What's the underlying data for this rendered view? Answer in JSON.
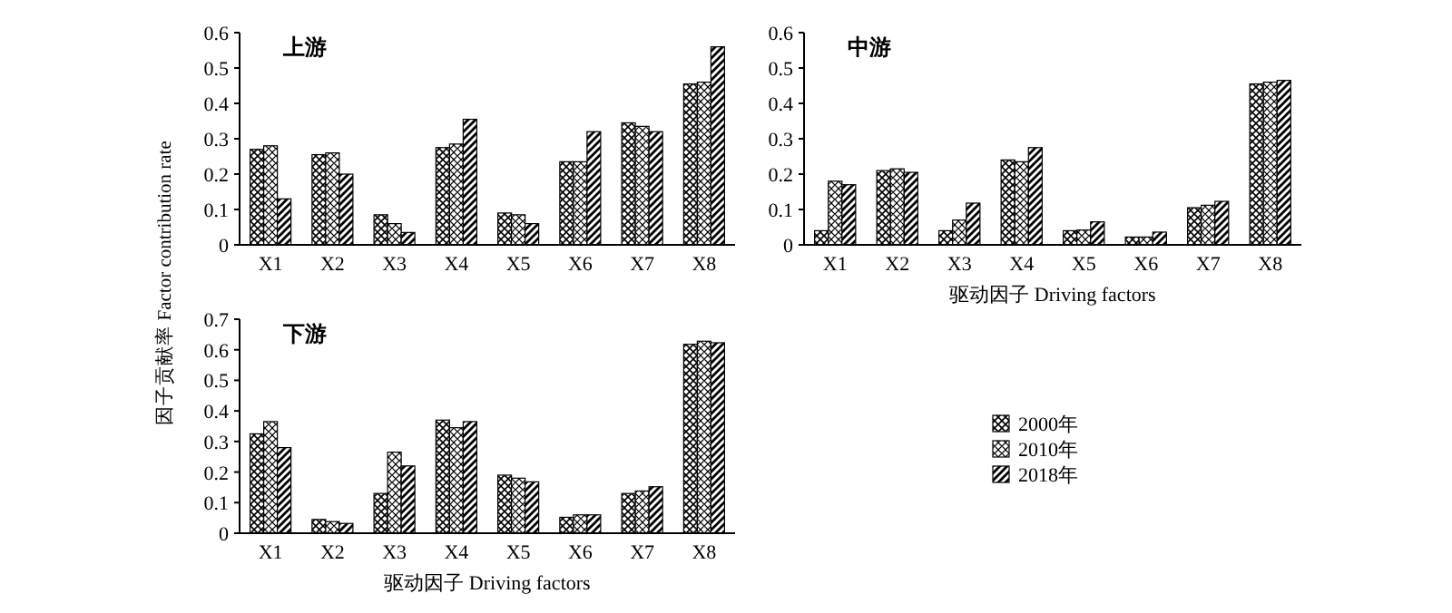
{
  "chart_data": [
    {
      "type": "bar",
      "title": "上游",
      "ylabel": "因子贡献率 Factor contribution rate",
      "categories": [
        "X1",
        "X2",
        "X3",
        "X4",
        "X5",
        "X6",
        "X7",
        "X8"
      ],
      "ylim": [
        0,
        0.6
      ],
      "yticks": [
        0,
        0.1,
        0.2,
        0.3,
        0.4,
        0.5,
        0.6
      ],
      "grid": false,
      "series": [
        {
          "color": "#000000",
          "values": [
            0.27,
            0.255,
            0.085,
            0.275,
            0.09,
            0.235,
            0.345,
            0.455
          ]
        },
        {
          "color": "#000000",
          "values": [
            0.28,
            0.26,
            0.06,
            0.285,
            0.085,
            0.235,
            0.335,
            0.46
          ]
        },
        {
          "color": "#000000",
          "values": [
            0.13,
            0.2,
            0.035,
            0.355,
            0.06,
            0.32,
            0.32,
            0.56
          ]
        }
      ]
    },
    {
      "type": "bar",
      "title": "中游",
      "xlabel": "驱动因子 Driving factors",
      "categories": [
        "X1",
        "X2",
        "X3",
        "X4",
        "X5",
        "X6",
        "X7",
        "X8"
      ],
      "ylim": [
        0,
        0.6
      ],
      "yticks": [
        0,
        0.1,
        0.2,
        0.3,
        0.4,
        0.5,
        0.6
      ],
      "grid": false,
      "series": [
        {
          "color": "#000000",
          "values": [
            0.04,
            0.21,
            0.04,
            0.24,
            0.04,
            0.022,
            0.105,
            0.455
          ]
        },
        {
          "color": "#000000",
          "values": [
            0.18,
            0.215,
            0.07,
            0.235,
            0.042,
            0.022,
            0.112,
            0.46
          ]
        },
        {
          "color": "#000000",
          "values": [
            0.17,
            0.205,
            0.118,
            0.275,
            0.065,
            0.036,
            0.123,
            0.465
          ]
        }
      ]
    },
    {
      "type": "bar",
      "title": "下游",
      "xlabel": "驱动因子 Driving factors",
      "categories": [
        "X1",
        "X2",
        "X3",
        "X4",
        "X5",
        "X6",
        "X7",
        "X8"
      ],
      "ylim": [
        0,
        0.7
      ],
      "yticks": [
        0,
        0.1,
        0.2,
        0.3,
        0.4,
        0.5,
        0.6,
        0.7
      ],
      "grid": false,
      "legend": "right",
      "series": [
        {
          "name": "2000年",
          "color": "#000000",
          "values": [
            0.325,
            0.045,
            0.13,
            0.37,
            0.19,
            0.052,
            0.13,
            0.618
          ]
        },
        {
          "name": "2010年",
          "color": "#000000",
          "values": [
            0.365,
            0.038,
            0.265,
            0.345,
            0.18,
            0.06,
            0.138,
            0.628
          ]
        },
        {
          "name": "2018年",
          "color": "#000000",
          "values": [
            0.28,
            0.032,
            0.22,
            0.365,
            0.168,
            0.06,
            0.152,
            0.623
          ]
        }
      ]
    }
  ]
}
